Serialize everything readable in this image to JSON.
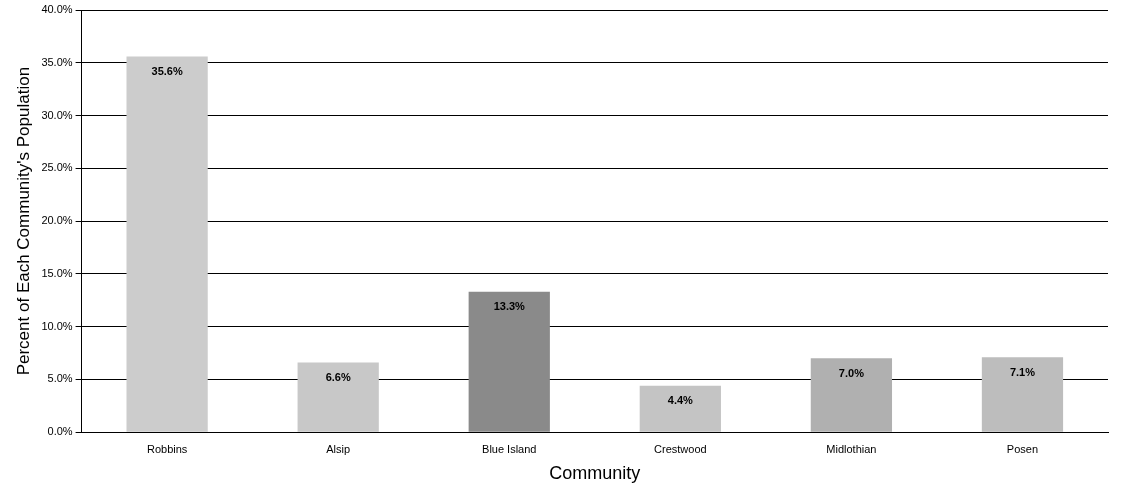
{
  "chart_data": {
    "type": "bar",
    "xlabel": "Community",
    "ylabel": "Percent of Each Community's Population",
    "categories": [
      "Robbins",
      "Alsip",
      "Blue Island",
      "Crestwood",
      "Midlothian",
      "Posen"
    ],
    "values": [
      35.6,
      6.6,
      13.3,
      4.4,
      7.0,
      7.1
    ],
    "value_labels": [
      "35.6%",
      "6.6%",
      "13.3%",
      "4.4%",
      "7.0%",
      "7.1%"
    ],
    "colors": [
      "#cccccc",
      "#c8c8c8",
      "#8a8a8a",
      "#c4c4c4",
      "#b0b0b0",
      "#bdbdbd"
    ],
    "ylim": [
      0,
      40
    ],
    "yticks": [
      {
        "value": 0,
        "label": "0.0%"
      },
      {
        "value": 5,
        "label": "5.0%"
      },
      {
        "value": 10,
        "label": "10.0%"
      },
      {
        "value": 15,
        "label": "15.0%"
      },
      {
        "value": 20,
        "label": "20.0%"
      },
      {
        "value": 25,
        "label": "25.0%"
      },
      {
        "value": 30,
        "label": "30.0%"
      },
      {
        "value": 35,
        "label": "35.0%"
      },
      {
        "value": 40,
        "label": "40.0%"
      }
    ],
    "grid": "y"
  }
}
